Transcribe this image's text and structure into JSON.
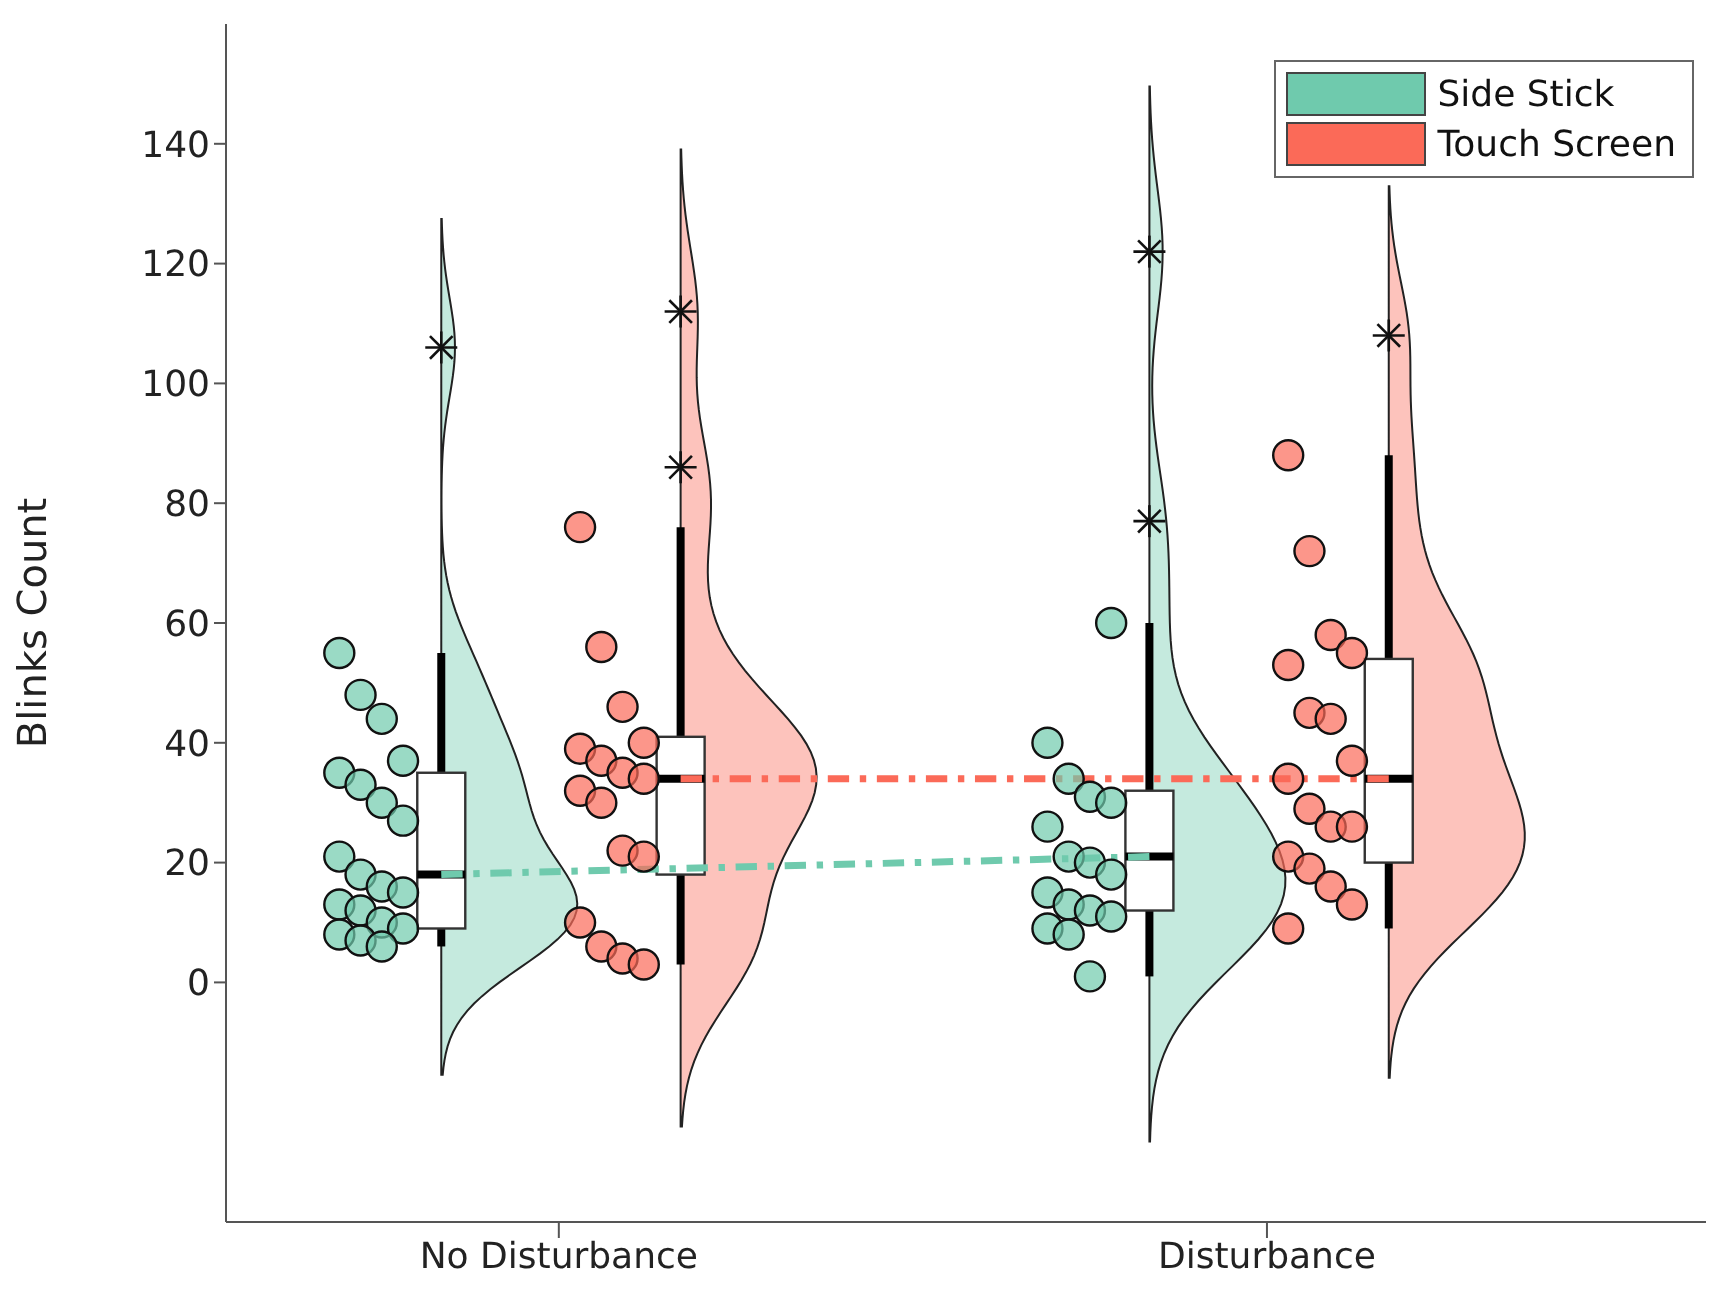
{
  "chart_data": {
    "type": "box",
    "ylabel": "Blinks Count",
    "categories": [
      "No Disturbance",
      "Disturbance"
    ],
    "ylim": [
      -40,
      160
    ],
    "yticks": [
      0,
      20,
      40,
      60,
      80,
      100,
      120,
      140
    ],
    "grid": false,
    "legend": "top right",
    "series": [
      {
        "type": "box",
        "color": "#ffffff",
        "boxes": [
          {
            "low": 6,
            "q1": 9,
            "median": 18,
            "q3": 35,
            "high": 55,
            "outliers": [
              106
            ]
          },
          {
            "low": 1,
            "q1": 12,
            "median": 21,
            "q3": 32,
            "high": 60,
            "outliers": [
              122,
              77
            ]
          }
        ]
      },
      {
        "type": "box",
        "color": "#ffffff",
        "boxes": [
          {
            "low": 3,
            "q1": 18,
            "median": 34,
            "q3": 41,
            "high": 76,
            "outliers": [
              112,
              86
            ]
          },
          {
            "low": 9,
            "q1": 20,
            "median": 34,
            "q3": 54,
            "high": 88,
            "outliers": [
              108
            ]
          }
        ]
      },
      {
        "type": "scatter",
        "name": "Side Stick",
        "color": "#6fcaad",
        "marker": "circle",
        "x": [
          "No Disturbance",
          "No Disturbance",
          "No Disturbance",
          "No Disturbance",
          "No Disturbance",
          "No Disturbance",
          "No Disturbance",
          "No Disturbance",
          "No Disturbance",
          "No Disturbance",
          "No Disturbance",
          "No Disturbance",
          "No Disturbance",
          "No Disturbance",
          "No Disturbance",
          "No Disturbance",
          "No Disturbance",
          "No Disturbance",
          "No Disturbance",
          "Disturbance",
          "Disturbance",
          "Disturbance",
          "Disturbance",
          "Disturbance",
          "Disturbance",
          "Disturbance",
          "Disturbance",
          "Disturbance",
          "Disturbance",
          "Disturbance",
          "Disturbance",
          "Disturbance",
          "Disturbance",
          "Disturbance",
          "Disturbance"
        ],
        "values": [
          55,
          48,
          44,
          37,
          35,
          33,
          30,
          27,
          21,
          18,
          16,
          15,
          13,
          12,
          10,
          9,
          8,
          7,
          6,
          60,
          40,
          34,
          31,
          30,
          26,
          21,
          20,
          18,
          15,
          13,
          12,
          11,
          9,
          8,
          1
        ]
      },
      {
        "type": "scatter",
        "name": "Touch Screen",
        "color": "#fb6a58",
        "marker": "circle",
        "x": [
          "No Disturbance",
          "No Disturbance",
          "No Disturbance",
          "No Disturbance",
          "No Disturbance",
          "No Disturbance",
          "No Disturbance",
          "No Disturbance",
          "No Disturbance",
          "No Disturbance",
          "No Disturbance",
          "No Disturbance",
          "No Disturbance",
          "No Disturbance",
          "No Disturbance",
          "No Disturbance",
          "Disturbance",
          "Disturbance",
          "Disturbance",
          "Disturbance",
          "Disturbance",
          "Disturbance",
          "Disturbance",
          "Disturbance",
          "Disturbance",
          "Disturbance",
          "Disturbance",
          "Disturbance",
          "Disturbance",
          "Disturbance",
          "Disturbance",
          "Disturbance",
          "Disturbance"
        ],
        "values": [
          76,
          56,
          46,
          40,
          39,
          37,
          35,
          34,
          32,
          30,
          22,
          21,
          10,
          6,
          4,
          3,
          88,
          72,
          58,
          55,
          53,
          45,
          44,
          37,
          34,
          29,
          26,
          26,
          21,
          19,
          16,
          13,
          9
        ]
      },
      {
        "type": "line",
        "color": "#6fcaad",
        "line_style": "dashed",
        "values": [
          18,
          21
        ]
      },
      {
        "type": "line",
        "color": "#fb6a58",
        "line_style": "dashed",
        "values": [
          34,
          34
        ]
      }
    ]
  }
}
